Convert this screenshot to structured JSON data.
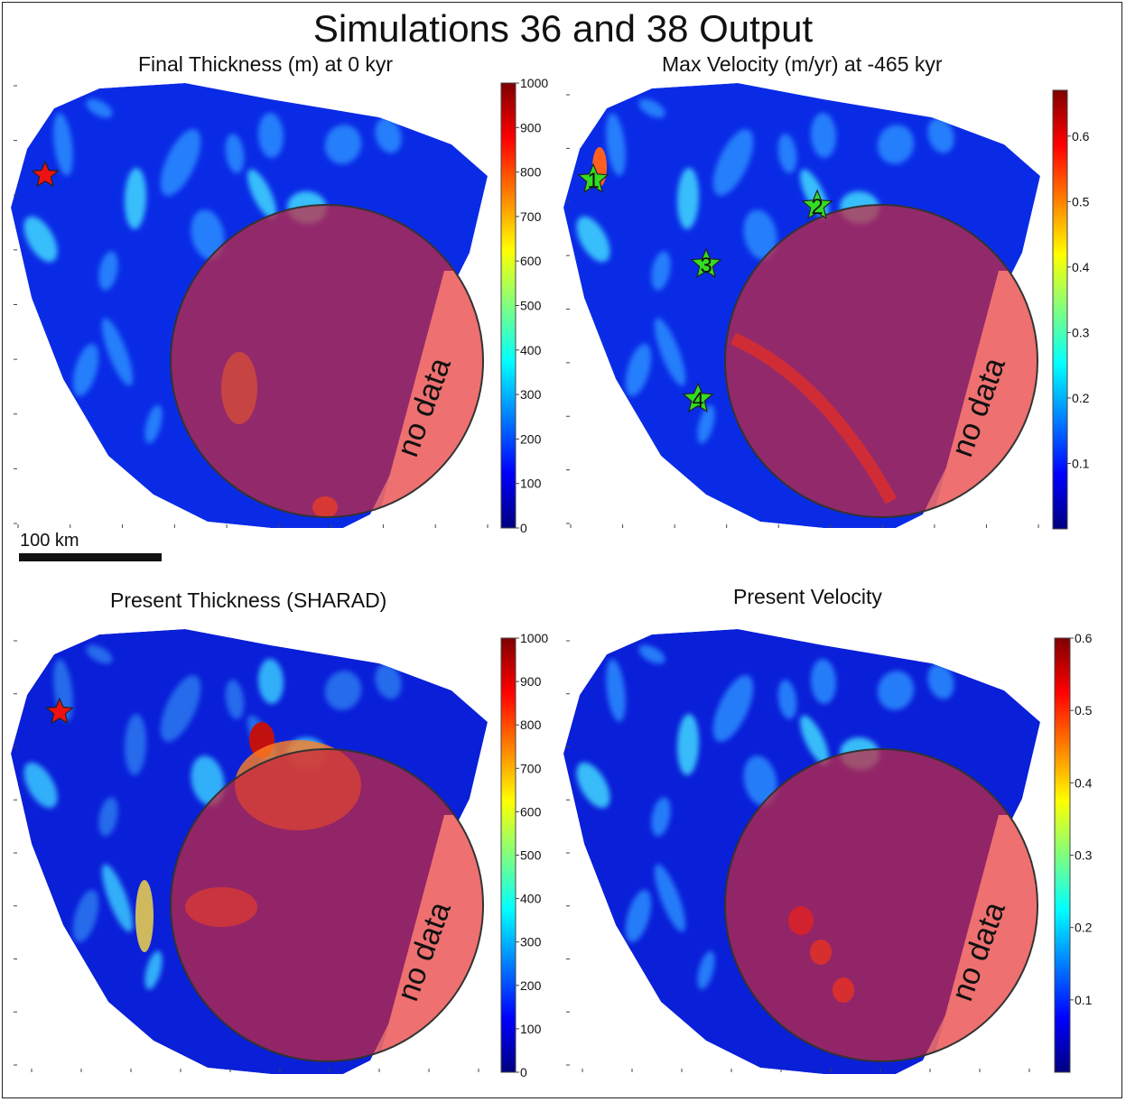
{
  "title": "Simulations 36 and 38 Output",
  "panels": [
    {
      "id": "final-thickness",
      "title": "Final Thickness (m) at 0 kyr",
      "colorbar": {
        "min": 0,
        "max": 1000,
        "ticks": [
          0,
          100,
          200,
          300,
          400,
          500,
          600,
          700,
          800,
          900,
          1000
        ],
        "tick_labels": [
          "0",
          "100",
          "200",
          "300",
          "400",
          "500",
          "600",
          "700",
          "800",
          "900",
          "1000"
        ]
      },
      "overlay_label": "no data",
      "markers": [
        {
          "type": "red-star",
          "label": ""
        }
      ]
    },
    {
      "id": "max-velocity",
      "title": "Max Velocity (m/yr) at -465 kyr",
      "colorbar": {
        "min": 0,
        "max": 0.67,
        "ticks": [
          0.1,
          0.2,
          0.3,
          0.4,
          0.5,
          0.6
        ],
        "tick_labels": [
          "0.1",
          "0.2",
          "0.3",
          "0.4",
          "0.5",
          "0.6"
        ]
      },
      "overlay_label": "no data",
      "markers": [
        {
          "type": "green-star",
          "label": "1"
        },
        {
          "type": "green-star",
          "label": "2"
        },
        {
          "type": "green-star",
          "label": "3"
        },
        {
          "type": "green-star",
          "label": "4"
        }
      ]
    },
    {
      "id": "present-thickness",
      "title": "Present Thickness (SHARAD)",
      "colorbar": {
        "min": 0,
        "max": 1000,
        "ticks": [
          0,
          100,
          200,
          300,
          400,
          500,
          600,
          700,
          800,
          900,
          1000
        ],
        "tick_labels": [
          "0",
          "100",
          "200",
          "300",
          "400",
          "500",
          "600",
          "700",
          "800",
          "900",
          "1000"
        ]
      },
      "overlay_label": "no data",
      "markers": [
        {
          "type": "red-star",
          "label": ""
        }
      ]
    },
    {
      "id": "present-velocity",
      "title": "Present Velocity",
      "colorbar": {
        "min": 0,
        "max": 0.6,
        "ticks": [
          0.1,
          0.2,
          0.3,
          0.4,
          0.5,
          0.6
        ],
        "tick_labels": [
          "0.1",
          "0.2",
          "0.3",
          "0.4",
          "0.5",
          "0.6"
        ]
      },
      "overlay_label": "no data",
      "markers": []
    }
  ],
  "scale_bar": {
    "label": "100 km"
  },
  "colors": {
    "jet": [
      "#00007f",
      "#0000ff",
      "#007fff",
      "#00ffff",
      "#7fff7f",
      "#ffff00",
      "#ff7f00",
      "#ff0000",
      "#7f0000"
    ],
    "overlay": "#c8283c",
    "star_red": "#ee1111",
    "star_green": "#33dd22"
  },
  "chart_data": [
    {
      "type": "heatmap",
      "title": "Final Thickness (m) at 0 kyr",
      "colorbar_range": [
        0,
        1000
      ],
      "unit": "m"
    },
    {
      "type": "heatmap",
      "title": "Max Velocity (m/yr) at -465 kyr",
      "colorbar_range": [
        0,
        0.67
      ],
      "unit": "m/yr",
      "markers": [
        "1",
        "2",
        "3",
        "4"
      ]
    },
    {
      "type": "heatmap",
      "title": "Present Thickness (SHARAD)",
      "colorbar_range": [
        0,
        1000
      ]
    },
    {
      "type": "heatmap",
      "title": "Present Velocity",
      "colorbar_range": [
        0,
        0.6
      ]
    }
  ]
}
